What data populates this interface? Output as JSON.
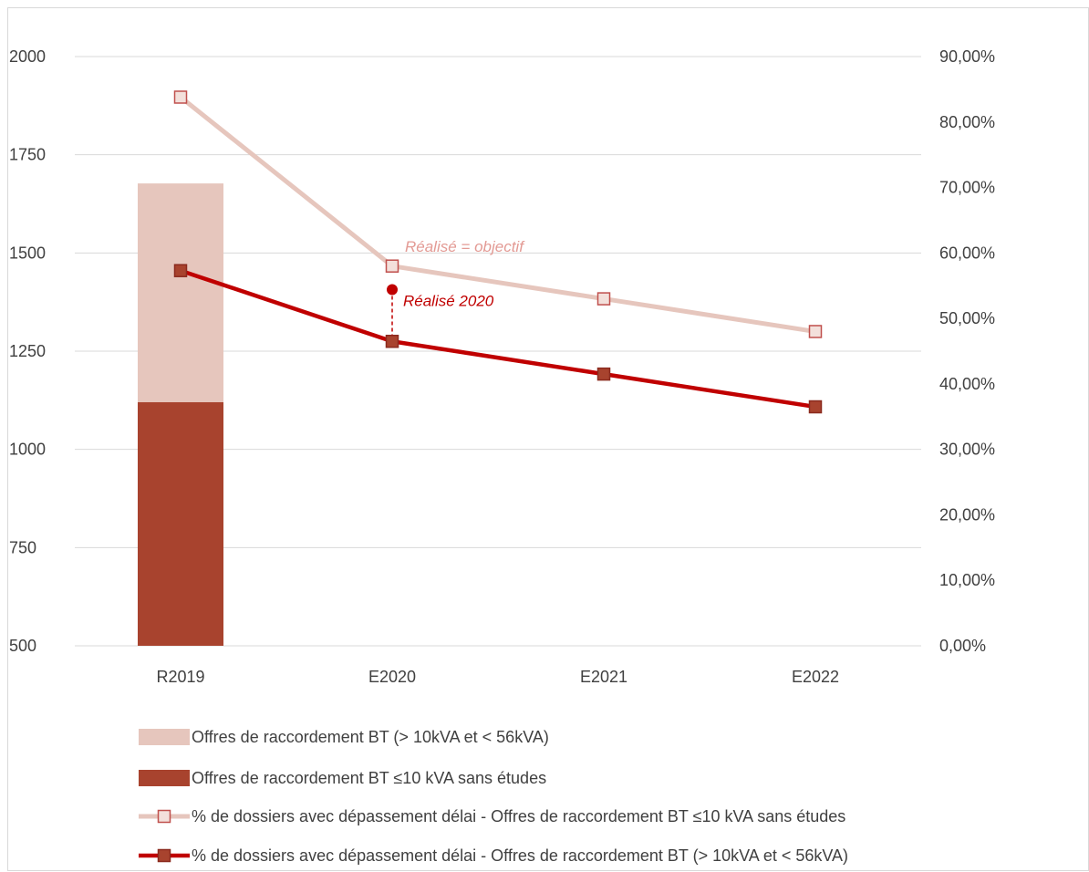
{
  "chart_data": {
    "type": "bar",
    "categories": [
      "R2019",
      "E2020",
      "E2021",
      "E2022"
    ],
    "y_left": {
      "ylim": [
        500,
        2000
      ],
      "ticks": [
        500,
        750,
        1000,
        1250,
        1500,
        1750,
        2000
      ]
    },
    "y_right": {
      "ylim": [
        0,
        90
      ],
      "ticks": [
        "0,00%",
        "10,00%",
        "20,00%",
        "30,00%",
        "40,00%",
        "50,00%",
        "60,00%",
        "70,00%",
        "80,00%",
        "90,00%"
      ]
    },
    "bars": [
      {
        "name": "Offres de raccordement BT (> 10kVA et < 56kVA)",
        "color": "#e6c6bd",
        "values": [
          1677,
          null,
          null,
          null
        ]
      },
      {
        "name": "Offres de raccordement BT ≤10 kVA sans études",
        "color": "#a8432e",
        "values": [
          1120,
          null,
          null,
          null
        ]
      }
    ],
    "lines": [
      {
        "name": "% de dossiers avec dépassement délai - Offres de raccordement BT ≤10 kVA sans études",
        "color": "#e6c6bd",
        "marker_fill": "#f3e0db",
        "marker_stroke": "#c0504d",
        "axis": "right",
        "values": [
          83.8,
          58.0,
          53.0,
          48.0
        ]
      },
      {
        "name": "% de dossiers avec dépassement délai - Offres de raccordement BT (> 10kVA et < 56kVA)",
        "color": "#c00000",
        "marker_fill": "#a8432e",
        "marker_stroke": "#8b2a1e",
        "axis": "right",
        "values": [
          57.3,
          46.5,
          41.5,
          36.5
        ]
      }
    ],
    "annotations": [
      {
        "text": "Réalisé = objectif",
        "color": "#e39a94"
      },
      {
        "text": "Réalisé 2020",
        "color": "#c00000",
        "category": "E2020",
        "value": 54.4,
        "axis": "right"
      }
    ],
    "legend_position": "bottom",
    "grid": true
  }
}
